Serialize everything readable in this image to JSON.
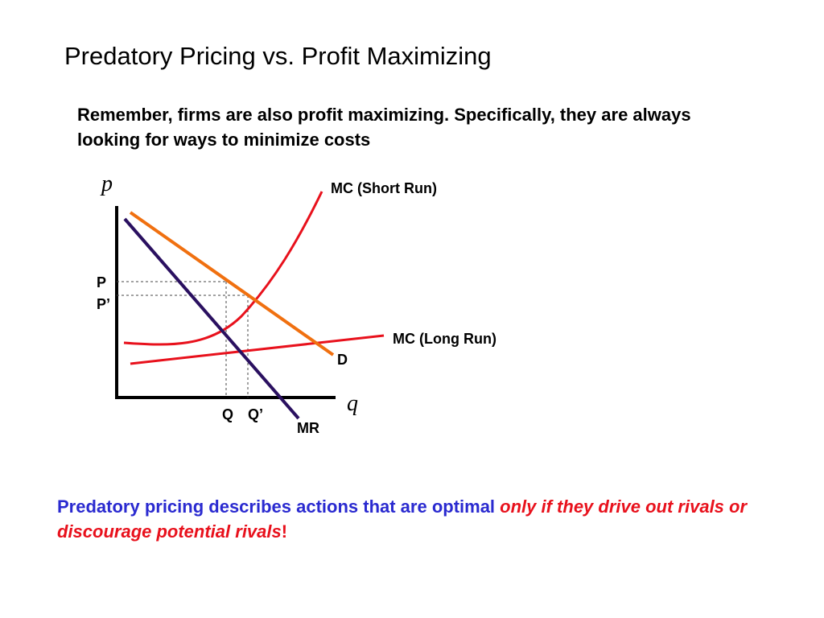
{
  "slide": {
    "title": "Predatory Pricing vs. Profit Maximizing",
    "intro": "Remember, firms are also profit maximizing.  Specifically, they are always looking for ways to minimize costs",
    "footer": {
      "normal": "Predatory pricing describes actions that are optimal ",
      "emphasis": "only if they drive out rivals or discourage potential rivals",
      "bang": "!"
    }
  },
  "diagram": {
    "y_axis_label": "p",
    "x_axis_label": "q",
    "labels": {
      "mc_short": "MC (Short Run)",
      "mc_long": "MC (Long Run)",
      "demand": "D",
      "mr": "MR",
      "price_p": "P",
      "price_p_prime": "P’",
      "qty_q": "Q",
      "qty_q_prime": "Q’"
    },
    "colors": {
      "demand": "#f07010",
      "mr": "#2a1060",
      "mc": "#e8111c",
      "axis": "#000000",
      "guide": "#444444"
    }
  }
}
